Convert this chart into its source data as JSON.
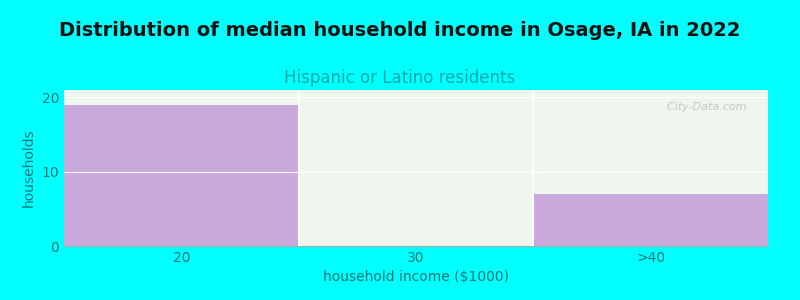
{
  "title": "Distribution of median household income in Osage, IA in 2022",
  "subtitle": "Hispanic or Latino residents",
  "categories": [
    "20",
    "30",
    ">40"
  ],
  "values": [
    19,
    0,
    7
  ],
  "bar_colors": [
    "#c9a8dc",
    "#ddeedd",
    "#c9a8dc"
  ],
  "xlabel": "household income ($1000)",
  "ylabel": "households",
  "ylim": [
    0,
    21
  ],
  "yticks": [
    0,
    10,
    20
  ],
  "background_color": "#00ffff",
  "plot_bg_color": "#eef6ee",
  "title_fontsize": 14,
  "subtitle_fontsize": 12,
  "subtitle_color": "#00aaaa",
  "axis_label_color": "#007777",
  "axis_label_fontsize": 10,
  "tick_fontsize": 10,
  "tick_color": "#007777",
  "watermark": "  City-Data.com"
}
